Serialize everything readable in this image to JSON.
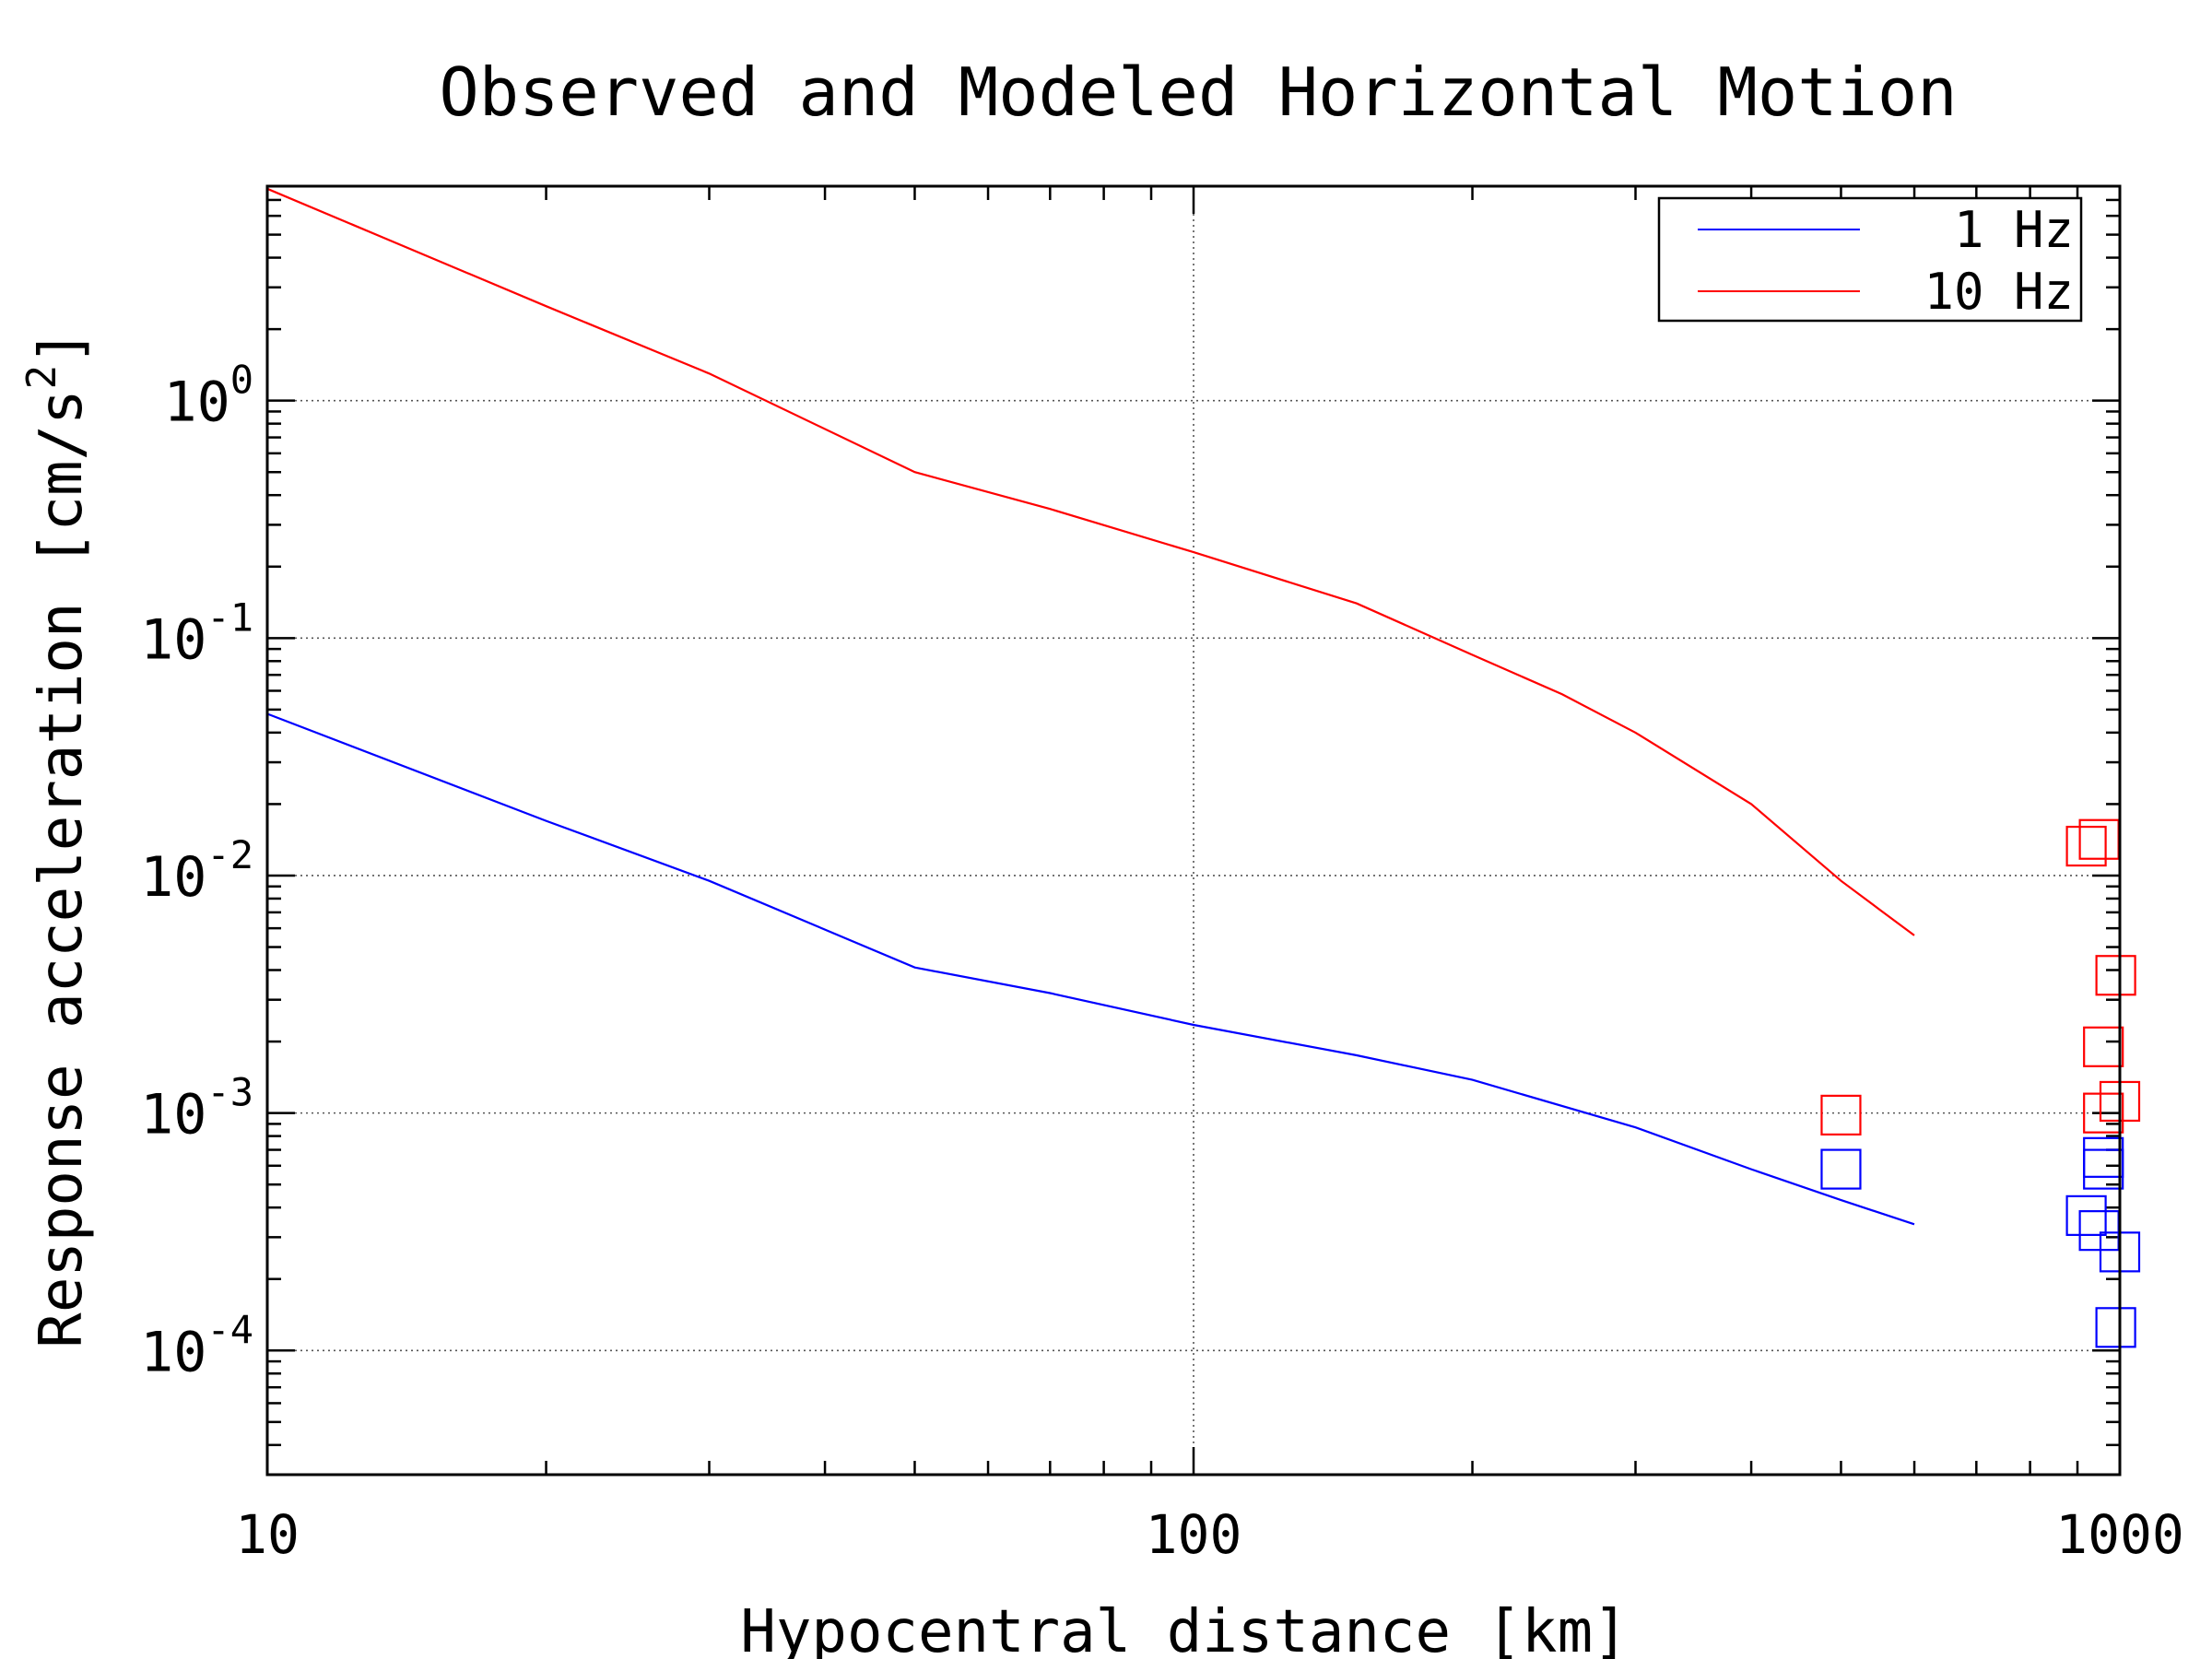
{
  "chart_data": {
    "type": "line",
    "title": "Observed and Modeled Horizontal Motion",
    "xlabel": "Hypocentral distance [km]",
    "ylabel_text": "Response acceleration [cm/s",
    "ylabel_sup": "2",
    "ylabel_close": "]",
    "x_scale": "log",
    "y_scale": "log",
    "xlim": [
      10,
      1000
    ],
    "ylim": [
      3e-05,
      8
    ],
    "grid": true,
    "legend_position": "top-right",
    "x_ticks": [
      {
        "value": 10,
        "label": "10"
      },
      {
        "value": 100,
        "label": "100"
      },
      {
        "value": 1000,
        "label": "1000"
      }
    ],
    "y_ticks": [
      {
        "value": 1,
        "base": "10",
        "exp": "0"
      },
      {
        "value": 0.1,
        "base": "10",
        "exp": "-1"
      },
      {
        "value": 0.01,
        "base": "10",
        "exp": "-2"
      },
      {
        "value": 0.001,
        "base": "10",
        "exp": "-3"
      },
      {
        "value": 0.0001,
        "base": "10",
        "exp": "-4"
      }
    ],
    "series": [
      {
        "name": "1 Hz",
        "color": "#0000ff",
        "x": [
          10,
          20,
          30,
          50,
          70,
          100,
          150,
          200,
          300,
          400,
          500,
          600
        ],
        "y": [
          0.048,
          0.017,
          0.0095,
          0.0041,
          0.0032,
          0.00235,
          0.00175,
          0.00138,
          0.00087,
          0.00058,
          0.00043,
          0.00034
        ]
      },
      {
        "name": "10 Hz",
        "color": "#ff0000",
        "x": [
          10,
          20,
          30,
          50,
          70,
          100,
          150,
          200,
          250,
          300,
          400,
          500,
          550,
          600
        ],
        "y": [
          7.8,
          2.5,
          1.3,
          0.5,
          0.35,
          0.23,
          0.14,
          0.085,
          0.058,
          0.04,
          0.02,
          0.0095,
          0.0072,
          0.0056
        ]
      }
    ],
    "observations": [
      {
        "series": "10 Hz",
        "color": "#ff0000",
        "points": [
          {
            "x": 500,
            "y": 0.00098
          },
          {
            "x": 920,
            "y": 0.0133
          },
          {
            "x": 950,
            "y": 0.0142
          },
          {
            "x": 990,
            "y": 0.0038
          },
          {
            "x": 960,
            "y": 0.0019
          },
          {
            "x": 960,
            "y": 0.001
          },
          {
            "x": 1000,
            "y": 0.00112
          }
        ]
      },
      {
        "series": "1 Hz",
        "color": "#0000ff",
        "points": [
          {
            "x": 500,
            "y": 0.00058
          },
          {
            "x": 960,
            "y": 0.00065
          },
          {
            "x": 960,
            "y": 0.00058
          },
          {
            "x": 920,
            "y": 0.00037
          },
          {
            "x": 950,
            "y": 0.00032
          },
          {
            "x": 1000,
            "y": 0.00026
          },
          {
            "x": 990,
            "y": 0.000125
          }
        ]
      }
    ]
  }
}
